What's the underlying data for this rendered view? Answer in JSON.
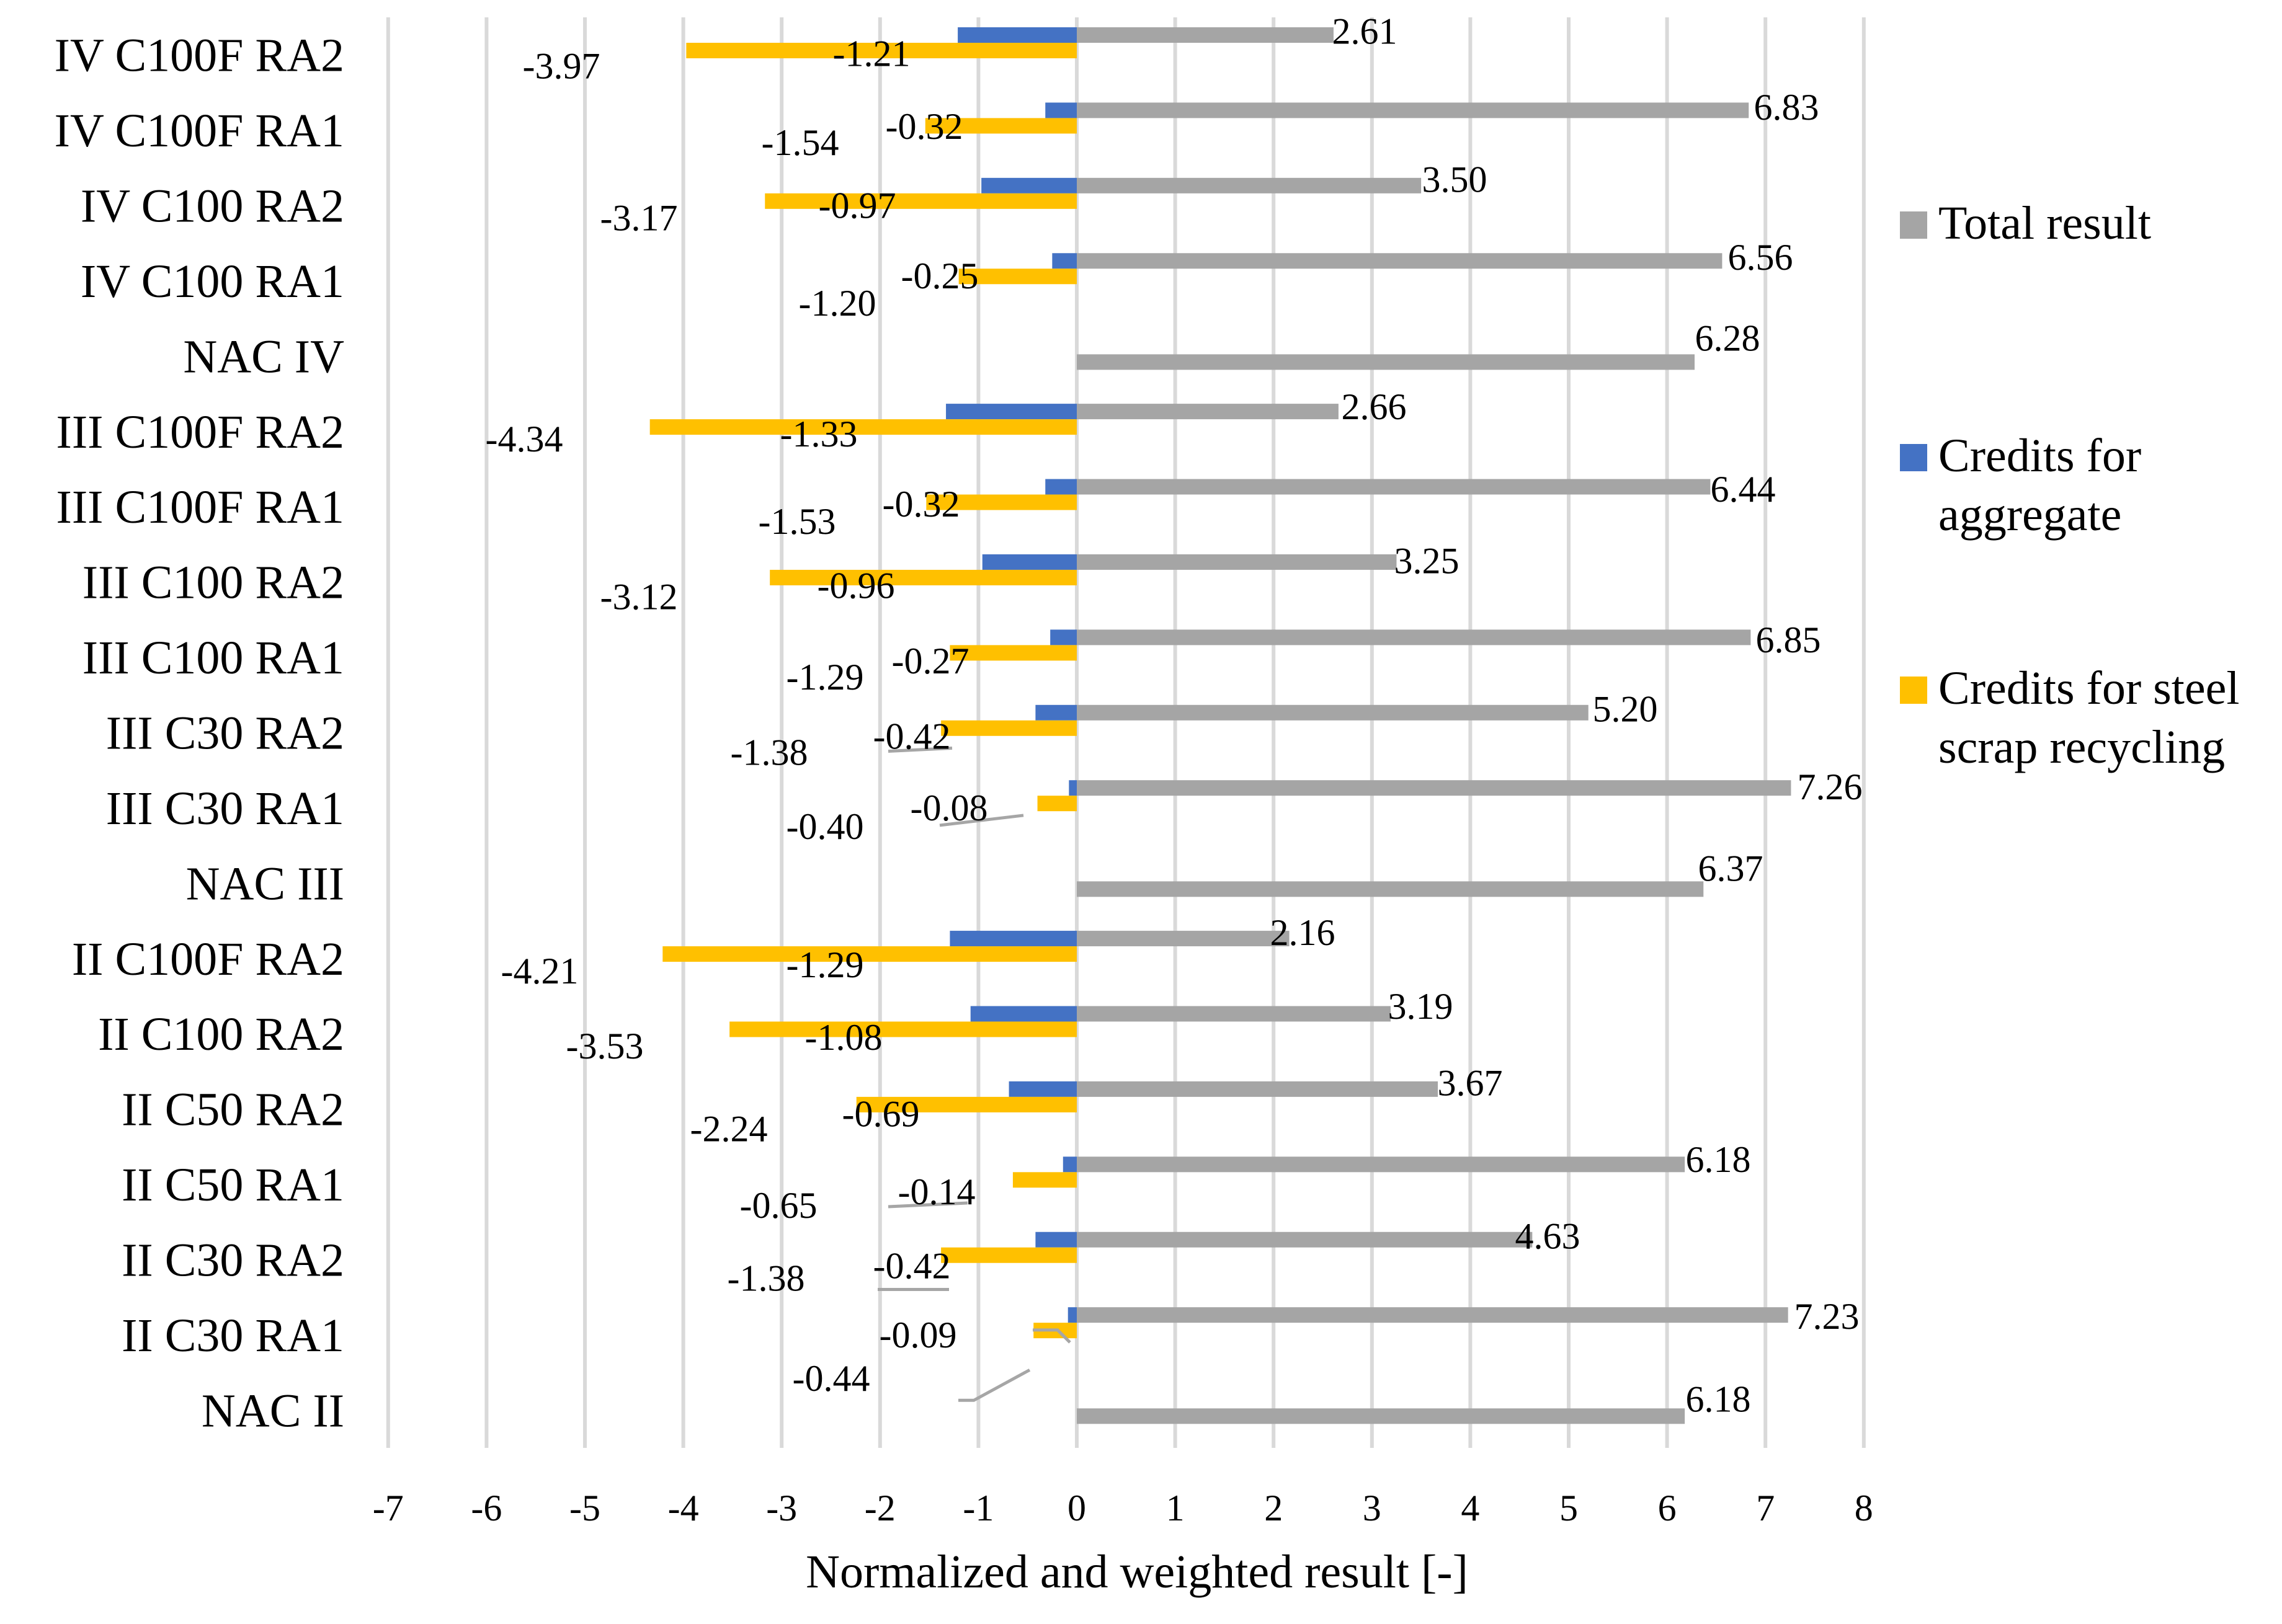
{
  "chart_data": {
    "type": "bar",
    "orientation": "horizontal",
    "title": "",
    "xlabel": "Normalized and weighted result [-]",
    "ylabel": "",
    "xlim": [
      -7,
      8
    ],
    "xticks": [
      "-7",
      "-6",
      "-5",
      "-4",
      "-3",
      "-2",
      "-1",
      "0",
      "1",
      "2",
      "3",
      "4",
      "5",
      "6",
      "7",
      "8"
    ],
    "grid": "vertical",
    "legend_position": "right",
    "categories": [
      "IV C100F RA2",
      "IV C100F RA1",
      "IV C100 RA2",
      "IV C100 RA1",
      "NAC IV",
      "III C100F RA2",
      "III C100F RA1",
      "III C100 RA2",
      "III C100 RA1",
      "III C30 RA2",
      "III C30 RA1",
      "NAC III",
      "II C100F RA2",
      "II C100 RA2",
      "II C50 RA2",
      "II C50 RA1",
      "II C30 RA2",
      "II C30 RA1",
      "NAC II"
    ],
    "series": [
      {
        "name": "Total result",
        "color": "#a5a5a5",
        "values": [
          2.61,
          6.83,
          3.5,
          6.56,
          6.28,
          2.66,
          6.44,
          3.25,
          6.85,
          5.2,
          7.26,
          6.37,
          2.16,
          3.19,
          3.67,
          6.18,
          4.63,
          7.23,
          6.18
        ],
        "labels": [
          "2.61",
          "6.83",
          "3.50",
          "6.56",
          "6.28",
          "2.66",
          "6.44",
          "3.25",
          "6.85",
          "5.20",
          "7.26",
          "6.37",
          "2.16",
          "3.19",
          "3.67",
          "6.18",
          "4.63",
          "7.23",
          "6.18"
        ]
      },
      {
        "name": "Credits for aggregate",
        "color": "#4472c4",
        "values": [
          -1.21,
          -0.32,
          -0.97,
          -0.25,
          null,
          -1.33,
          -0.32,
          -0.96,
          -0.27,
          -0.42,
          -0.08,
          null,
          -1.29,
          -1.08,
          -0.69,
          -0.14,
          -0.42,
          -0.09,
          null
        ],
        "labels": [
          "-1.21",
          "-0.32",
          "-0.97",
          "-0.25",
          null,
          "-1.33",
          "-0.32",
          "-0.96",
          "-0.27",
          "-0.42",
          "-0.08",
          null,
          "-1.29",
          "-1.08",
          "-0.69",
          "-0.14",
          "-0.42",
          "-0.09",
          null
        ]
      },
      {
        "name": "Credits for steel scrap recycling",
        "color": "#ffc000",
        "values": [
          -3.97,
          -1.54,
          -3.17,
          -1.2,
          null,
          -4.34,
          -1.53,
          -3.12,
          -1.29,
          -1.38,
          -0.4,
          null,
          -4.21,
          -3.53,
          -2.24,
          -0.65,
          -1.38,
          -0.44,
          null
        ],
        "labels": [
          "-3.97",
          "-1.54",
          "-3.17",
          "-1.20",
          null,
          "-4.34",
          "-1.53",
          "-3.12",
          "-1.29",
          "-1.38",
          "-0.40",
          null,
          "-4.21",
          "-3.53",
          "-2.24",
          "-0.65",
          "-1.38",
          "-0.44",
          null
        ]
      }
    ],
    "legend": [
      {
        "lines": [
          "Total result"
        ],
        "color": "#a5a5a5"
      },
      {
        "lines": [
          "Credits for",
          "aggregate"
        ],
        "color": "#4472c4"
      },
      {
        "lines": [
          "Credits for steel",
          "scrap recycling"
        ],
        "color": "#ffc000"
      }
    ]
  }
}
